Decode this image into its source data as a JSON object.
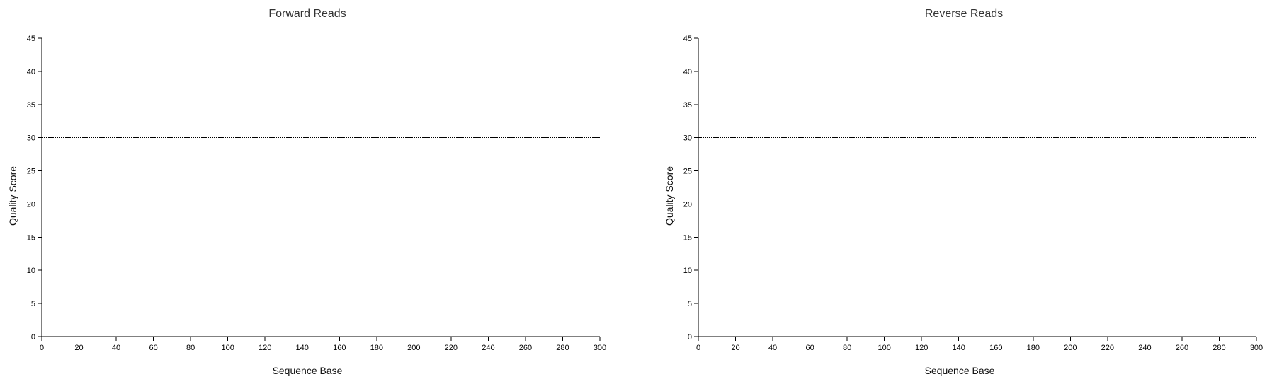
{
  "chart_data": [
    {
      "type": "line",
      "title": "Forward Reads",
      "xlabel": "Sequence Base",
      "ylabel": "Quality Score",
      "xlim": [
        0,
        300
      ],
      "ylim": [
        0,
        45
      ],
      "xticks": [
        0,
        20,
        40,
        60,
        80,
        100,
        120,
        140,
        160,
        180,
        200,
        220,
        240,
        260,
        280,
        300
      ],
      "yticks": [
        0,
        5,
        10,
        15,
        20,
        25,
        30,
        35,
        40,
        45
      ],
      "grid": false,
      "legend": "none",
      "series": [],
      "reference_lines": [
        {
          "y": 30,
          "style": "dashed"
        }
      ]
    },
    {
      "type": "line",
      "title": "Reverse Reads",
      "xlabel": "Sequence Base",
      "ylabel": "Quality Score",
      "xlim": [
        0,
        300
      ],
      "ylim": [
        0,
        45
      ],
      "xticks": [
        0,
        20,
        40,
        60,
        80,
        100,
        120,
        140,
        160,
        180,
        200,
        220,
        240,
        260,
        280,
        300
      ],
      "yticks": [
        0,
        5,
        10,
        15,
        20,
        25,
        30,
        35,
        40,
        45
      ],
      "grid": false,
      "legend": "none",
      "series": [],
      "reference_lines": [
        {
          "y": 30,
          "style": "dashed"
        }
      ]
    }
  ]
}
